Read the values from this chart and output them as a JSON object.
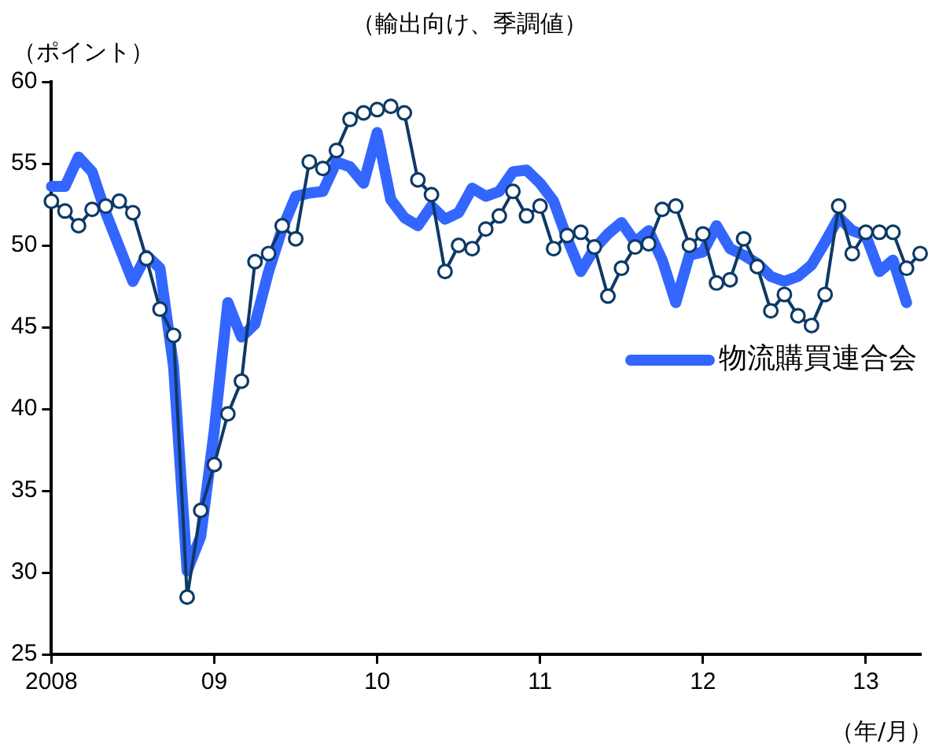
{
  "chart_data": {
    "type": "line",
    "title": "（輸出向け、季調値）",
    "ylabel": "（ポイント）",
    "xlabel": "（年/月）",
    "categories": [
      "2008",
      null,
      null,
      null,
      null,
      null,
      null,
      null,
      null,
      null,
      null,
      null,
      "09",
      null,
      null,
      null,
      null,
      null,
      null,
      null,
      null,
      null,
      null,
      null,
      "10",
      null,
      null,
      null,
      null,
      null,
      null,
      null,
      null,
      null,
      null,
      null,
      "11",
      null,
      null,
      null,
      null,
      null,
      null,
      null,
      null,
      null,
      null,
      null,
      "12",
      null,
      null,
      null,
      null,
      null,
      null,
      null,
      null,
      null,
      null,
      null,
      "13",
      null,
      null,
      null,
      null
    ],
    "ylim": [
      25,
      60
    ],
    "yticks": [
      25,
      30,
      35,
      40,
      45,
      50,
      55,
      60
    ],
    "grid": false,
    "legend": "right",
    "series": [
      {
        "name": "物流購買連合会",
        "color": "#3366ff",
        "marker": "none",
        "values": [
          53.6,
          53.6,
          55.4,
          54.5,
          52.0,
          49.9,
          47.8,
          49.4,
          48.6,
          42.6,
          30.1,
          32.2,
          38.7,
          46.5,
          44.4,
          45.2,
          48.4,
          51.0,
          53.0,
          53.2,
          53.3,
          55.1,
          54.8,
          53.8,
          56.9,
          52.8,
          51.7,
          51.2,
          52.4,
          51.6,
          52.0,
          53.5,
          53.0,
          53.3,
          54.5,
          54.6,
          53.8,
          52.7,
          50.4,
          48.4,
          49.8,
          50.7,
          51.4,
          50.2,
          50.9,
          49.1,
          46.5,
          49.4,
          49.6,
          51.2,
          49.8,
          49.4,
          48.9,
          48.1,
          47.8,
          48.1,
          48.8,
          50.2,
          51.7,
          50.9,
          50.6,
          48.4,
          49.1,
          46.5,
          null
        ]
      },
      {
        "color": "#0d3a66",
        "marker": "circle",
        "values": [
          52.7,
          52.1,
          51.2,
          52.2,
          52.4,
          52.7,
          52.0,
          49.2,
          46.1,
          44.5,
          28.5,
          33.8,
          36.6,
          39.7,
          41.7,
          49.0,
          49.5,
          51.2,
          50.4,
          55.1,
          54.7,
          55.8,
          57.7,
          58.1,
          58.3,
          58.5,
          58.1,
          54.0,
          53.1,
          48.4,
          50.0,
          49.8,
          51.0,
          51.8,
          53.3,
          51.8,
          52.4,
          49.8,
          50.6,
          50.8,
          49.9,
          46.9,
          48.6,
          49.9,
          50.1,
          52.2,
          52.4,
          50.0,
          50.7,
          47.7,
          47.9,
          50.4,
          48.7,
          46.0,
          47.0,
          45.7,
          45.1,
          47.0,
          52.4,
          49.5,
          50.8,
          50.8,
          50.8,
          48.6,
          49.5
        ]
      }
    ]
  }
}
